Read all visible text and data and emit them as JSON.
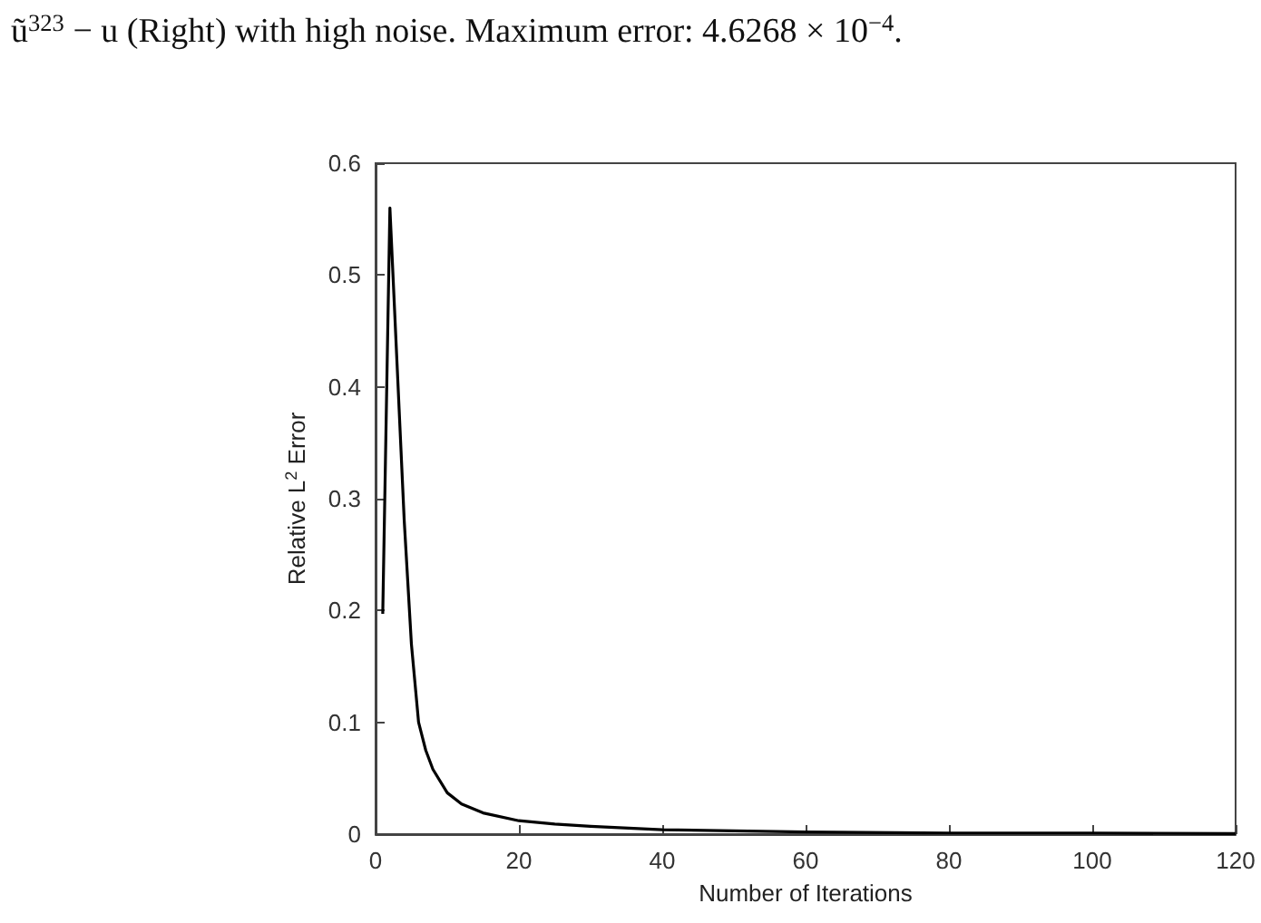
{
  "chart_data": {
    "type": "line",
    "annotations": [
      "ũ$^{323}$ − u (Right) with high noise. Maximum error: 4.6268 × 10$^{−4}$."
    ],
    "xlabel": "Number of Iterations",
    "ylabel": "Relative L$^{2}$ Error",
    "series": [
      {
        "color": "#000000",
        "x": [
          1,
          2,
          3,
          4,
          5,
          6,
          7,
          8,
          10,
          12,
          15,
          20,
          25,
          30,
          40,
          60,
          80,
          100,
          120
        ],
        "values": [
          0.197,
          0.56,
          0.42,
          0.28,
          0.17,
          0.1,
          0.075,
          0.058,
          0.037,
          0.027,
          0.019,
          0.012,
          0.009,
          0.007,
          0.004,
          0.002,
          0.001,
          0.001,
          0.0005
        ]
      }
    ],
    "xlim": [
      0,
      120
    ],
    "xticks": [
      0,
      20,
      40,
      60,
      80,
      100,
      120
    ],
    "ylim": [
      0,
      0.6
    ],
    "yticks": [
      0,
      0.1,
      0.2,
      0.3,
      0.4,
      0.5,
      0.6
    ],
    "grid": false,
    "marker": "none",
    "line_style": "solid"
  }
}
